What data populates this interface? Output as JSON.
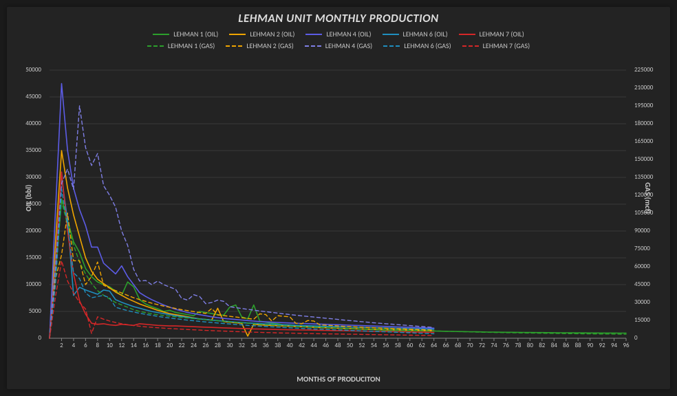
{
  "title": "LEHMAN UNIT MONTHLY PRODUCTION",
  "x_label": "MONTHS OF PRODUCITON",
  "y_label_left": "OIL (bbl)",
  "y_label_right": "GAS (mcf)",
  "plot": {
    "type": "line",
    "background_color": "#232323",
    "grid_color": "#3a3a3a",
    "axis_color": "#888888",
    "text_color": "#c8c8c8",
    "title_fontsize": 17,
    "label_fontsize": 11,
    "tick_fontsize": 9,
    "line_width_solid": 1.6,
    "line_width_dashed": 1.4,
    "x": {
      "min": 0,
      "max": 96,
      "tick_step": 2
    },
    "y_left": {
      "min": 0,
      "max": 50000,
      "tick_step": 5000
    },
    "y_right": {
      "min": 0,
      "max": 225000,
      "tick_step": 15000
    }
  },
  "series": [
    {
      "name": "LEHMAN 1 (OIL)",
      "axis": "left",
      "color": "#2ca02c",
      "dash": "solid",
      "y": [
        0,
        12000,
        26000,
        22000,
        18000,
        16000,
        13000,
        11500,
        10500,
        10000,
        9600,
        8800,
        8000,
        10500,
        9600,
        7200,
        6400,
        5900,
        5500,
        5000,
        5200,
        4800,
        4600,
        4400,
        4200,
        5000,
        4800,
        4600,
        4400,
        4300,
        5800,
        6200,
        4000,
        3600,
        6200,
        3200,
        3000,
        2800,
        2700,
        2500,
        2500,
        2400,
        2300,
        2200,
        2100,
        2100,
        2000,
        1900,
        1900,
        1800,
        1800,
        1750,
        1700,
        1650,
        1600,
        1550,
        1500,
        1480,
        1460,
        1440,
        1420,
        1400,
        1380,
        1360,
        1340,
        1320,
        1300,
        1280,
        1260,
        1240,
        1220,
        1200,
        1180,
        1160,
        1140,
        1130,
        1120,
        1110,
        1100,
        1090,
        1080,
        1070,
        1060,
        1050,
        1040,
        1030,
        1020,
        1010,
        1000,
        995,
        990,
        985,
        980,
        975,
        970,
        965,
        960
      ]
    },
    {
      "name": "LEHMAN 2 (OIL)",
      "axis": "left",
      "color": "#f0a500",
      "dash": "solid",
      "y": [
        0,
        18000,
        35000,
        28000,
        23000,
        19000,
        15000,
        12500,
        11000,
        10200,
        9400,
        8600,
        8000,
        7400,
        6900,
        6400,
        6000,
        5600,
        5200,
        4900,
        4600,
        4400,
        4200,
        4000,
        3800,
        3600,
        3500,
        3400,
        5600,
        3100,
        3000,
        2900,
        2800,
        400,
        2600,
        2500,
        2450,
        2400,
        2350,
        2300,
        2250,
        2200,
        2150,
        2100,
        2050,
        2000,
        1960,
        1920,
        1880,
        1840,
        1800,
        1770,
        1740,
        1710,
        1680,
        1650,
        1620,
        1590,
        1560,
        1530,
        1500,
        1470,
        1440,
        1410,
        1380
      ]
    },
    {
      "name": "LEHMAN 4 (OIL)",
      "axis": "left",
      "color": "#5c5ce6",
      "dash": "solid",
      "y": [
        0,
        24000,
        47500,
        35000,
        28000,
        24000,
        21000,
        17000,
        17000,
        14000,
        13000,
        12000,
        13500,
        11500,
        10000,
        8500,
        7800,
        7200,
        6700,
        6200,
        5800,
        5400,
        5100,
        4800,
        4600,
        4400,
        4200,
        4000,
        3850,
        3700,
        3600,
        3500,
        3400,
        3300,
        3200,
        3100,
        3050,
        3000,
        2950,
        2900,
        2850,
        2800,
        2760,
        2720,
        2680,
        2640,
        2600,
        2560,
        2520,
        2480,
        2440,
        2400,
        2360,
        2320,
        2280,
        2240,
        2200,
        2160,
        2120,
        2080,
        2040,
        2000,
        1960,
        1920,
        1880
      ]
    },
    {
      "name": "LEHMAN 6 (OIL)",
      "axis": "left",
      "color": "#1f8fbf",
      "dash": "solid",
      "y": [
        0,
        15000,
        30000,
        22000,
        8000,
        9500,
        9000,
        8600,
        8200,
        9000,
        8800,
        7200,
        6700,
        6300,
        5900,
        5600,
        5300,
        5000,
        4800,
        4600,
        4400,
        4200,
        4050,
        3900,
        3750,
        3600,
        3500,
        3400,
        3300,
        3200,
        3100,
        3000,
        2920,
        2850,
        2790,
        2730,
        2670,
        2610,
        2560,
        2510,
        2460,
        2410,
        2370,
        2330,
        2290,
        2250,
        2220,
        2190,
        2160,
        2130,
        2100,
        2070,
        2040,
        2010,
        1980,
        1950,
        1920,
        1890,
        1860,
        1830,
        1800,
        1770,
        1740,
        1710,
        1680
      ]
    },
    {
      "name": "LEHMAN 7 (OIL)",
      "axis": "left",
      "color": "#d62728",
      "dash": "solid",
      "y": [
        0,
        14000,
        31000,
        20000,
        12000,
        7000,
        4500,
        2800,
        2600,
        2700,
        2500,
        2400,
        2600,
        2500,
        2400,
        2700,
        2600,
        2500,
        2400,
        2350,
        2300,
        2300,
        2250,
        2200,
        2150,
        2100,
        2060,
        2020,
        1980,
        1940,
        1900,
        1860,
        1820,
        1780,
        1750,
        1720,
        1690,
        1660,
        1630,
        1600,
        1580,
        1560,
        1540,
        1520,
        1500,
        1480,
        1460,
        1440,
        1420,
        1400,
        1380,
        1360,
        1340,
        1320,
        1300,
        1280,
        1260,
        1240,
        1220,
        1200,
        1180,
        1160,
        1140,
        1120,
        1100
      ]
    },
    {
      "name": "LEHMAN 1 (GAS)",
      "axis": "right",
      "color": "#2ca02c",
      "dash": "dashed",
      "y": [
        0,
        55000,
        115000,
        95000,
        78000,
        64000,
        54000,
        46000,
        40000,
        36000,
        33000,
        30000,
        28000,
        26000,
        24000,
        22500,
        21500,
        20500,
        19800,
        19100,
        18500,
        18000,
        17500,
        17000,
        16500,
        16000,
        15500,
        15000,
        14600,
        14200,
        13800,
        13400,
        13000,
        12600,
        12200,
        11800,
        11500,
        11200,
        10900,
        10600,
        10300,
        10000,
        9800,
        9600,
        9400,
        9200,
        9000,
        8800,
        8600,
        8400,
        8200,
        8050,
        7900,
        7750,
        7600,
        7450,
        7300,
        7150,
        7000,
        6850,
        6700,
        6550,
        6400,
        6260,
        6120,
        5980,
        5840,
        5700,
        5580,
        5460,
        5340,
        5220,
        5100,
        5000,
        4900,
        4800,
        4700,
        4620,
        4540,
        4460,
        4380,
        4300,
        4230,
        4160,
        4090,
        4020,
        3950,
        3890,
        3830,
        3770,
        3710,
        3650,
        3600,
        3550,
        3500,
        3450,
        3400
      ]
    },
    {
      "name": "LEHMAN 2 (GAS)",
      "axis": "right",
      "color": "#f0a500",
      "dash": "dashed",
      "y": [
        0,
        50000,
        70000,
        105000,
        65000,
        65000,
        45000,
        52000,
        64000,
        44500,
        42000,
        40000,
        38000,
        36000,
        34000,
        32500,
        31000,
        29500,
        28200,
        27000,
        26000,
        25000,
        24000,
        23200,
        22400,
        21600,
        20800,
        25000,
        19600,
        19000,
        18400,
        17800,
        17200,
        16600,
        16000,
        20500,
        19900,
        14400,
        18900,
        18400,
        18000,
        12600,
        12200,
        14900,
        14500,
        11200,
        10900,
        10600,
        10300,
        10000,
        9750,
        9500,
        9250,
        9000,
        8800,
        8600,
        8400,
        8200,
        8000,
        7800,
        7600,
        7400,
        7200,
        7000,
        6800
      ]
    },
    {
      "name": "LEHMAN 4 (GAS)",
      "axis": "right",
      "color": "#7f7fe6",
      "dash": "dashed",
      "y": [
        0,
        60000,
        130000,
        142000,
        125000,
        195000,
        160000,
        145000,
        155000,
        128000,
        120000,
        110000,
        90000,
        78000,
        58000,
        48000,
        48500,
        45000,
        48000,
        45000,
        43000,
        41000,
        33500,
        32000,
        36500,
        35000,
        29000,
        30000,
        32000,
        31000,
        26500,
        25700,
        25000,
        24300,
        23600,
        22900,
        22300,
        21700,
        21100,
        20500,
        19900,
        19300,
        18800,
        18300,
        17800,
        17300,
        16800,
        16300,
        15800,
        15300,
        14800,
        14350,
        13900,
        13450,
        13000,
        12600,
        12200,
        11800,
        11400,
        11000,
        10600,
        10200,
        9800,
        9400,
        9000
      ]
    },
    {
      "name": "LEHMAN 6 (GAS)",
      "axis": "right",
      "color": "#1f8fbf",
      "dash": "dashed",
      "y": [
        0,
        45000,
        125000,
        95000,
        55000,
        50000,
        38000,
        34000,
        35000,
        36000,
        34000,
        26000,
        24500,
        23200,
        22000,
        21000,
        20000,
        19200,
        18400,
        17600,
        17000,
        16400,
        15800,
        15200,
        14700,
        14200,
        13700,
        13200,
        12800,
        12400,
        12000,
        11600,
        11200,
        10800,
        10500,
        10200,
        9900,
        9600,
        9300,
        9000,
        8750,
        8500,
        8250,
        8000,
        7800,
        7600,
        7400,
        7200,
        7000,
        6800,
        6600,
        6400,
        6200,
        6000,
        5800,
        5600,
        5400,
        5200,
        5000,
        4800,
        4600,
        4400,
        4200,
        4000,
        3800
      ]
    },
    {
      "name": "LEHMAN 7 (GAS)",
      "axis": "right",
      "color": "#d62728",
      "dash": "dashed",
      "y": [
        0,
        35000,
        65000,
        48000,
        38000,
        30000,
        24500,
        4000,
        18000,
        16000,
        14500,
        13200,
        12200,
        11400,
        10700,
        10100,
        9600,
        9200,
        8800,
        8500,
        8200,
        7900,
        7600,
        7350,
        7100,
        6850,
        6600,
        6400,
        6200,
        6000,
        5800,
        5600,
        5400,
        5250,
        5100,
        4950,
        4800,
        4650,
        4500,
        4400,
        4300,
        4200,
        4100,
        4000,
        3900,
        3800,
        3720,
        3640,
        3560,
        3480,
        3400,
        3320,
        3240,
        3160,
        3080,
        3000,
        2920,
        2840,
        2760,
        2680,
        2600,
        2520,
        2440,
        2360,
        2280
      ]
    }
  ]
}
